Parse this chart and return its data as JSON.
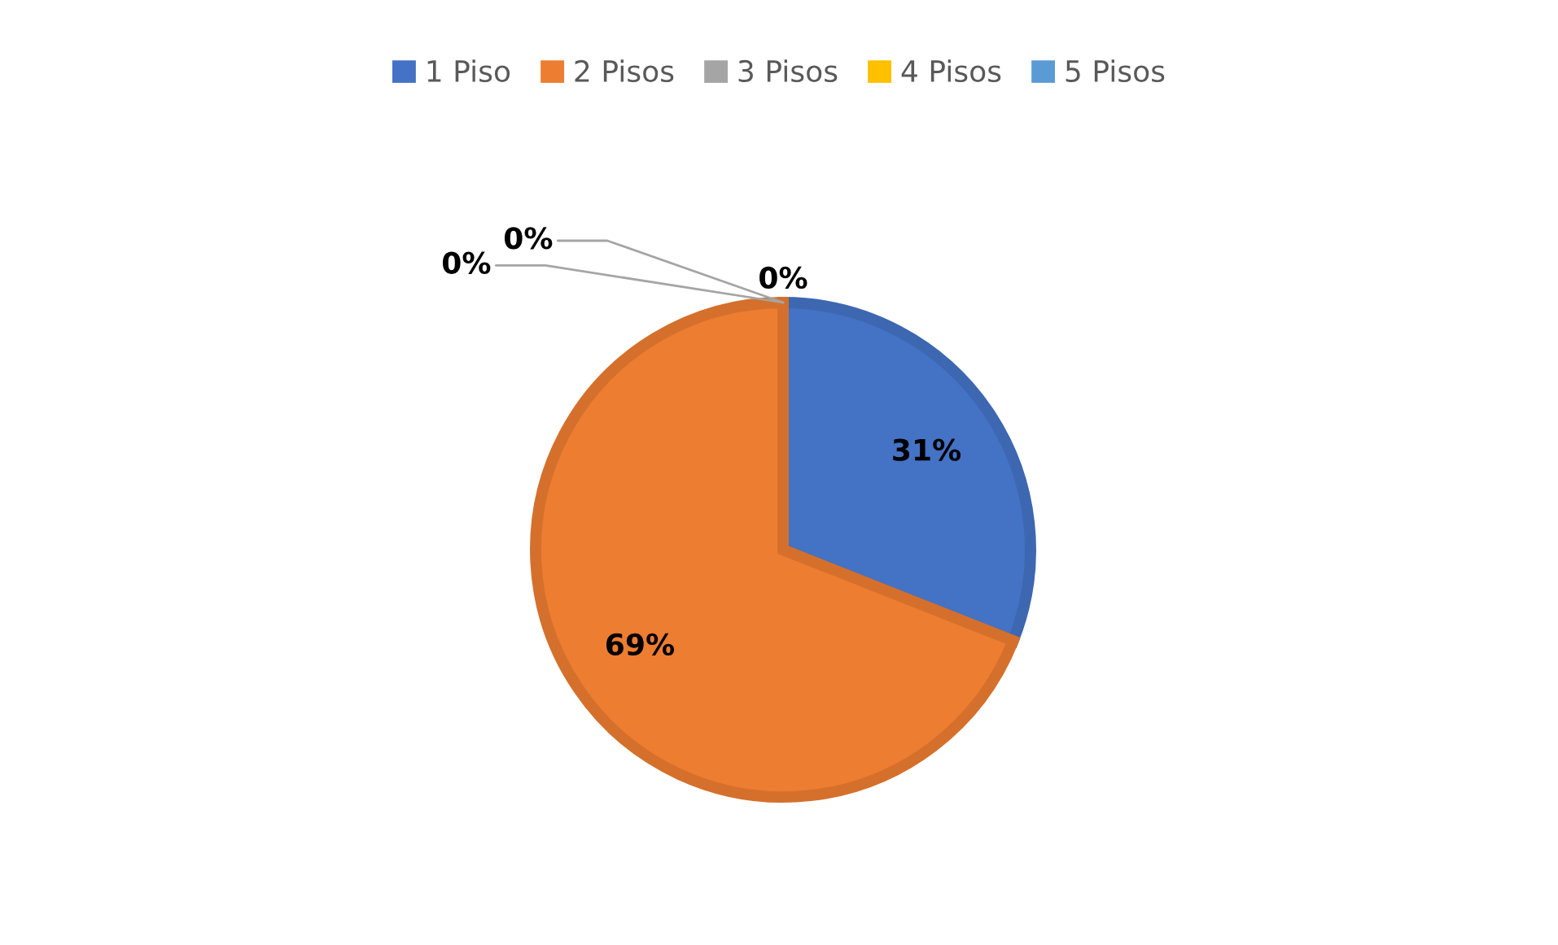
{
  "chart_data": {
    "type": "pie",
    "categories": [
      "1 Piso",
      "2 Pisos",
      "3 Pisos",
      "4 Pisos",
      "5 Pisos"
    ],
    "values": [
      31,
      69,
      0,
      0,
      0
    ],
    "colors": [
      "#4472c4",
      "#ed7d31",
      "#a5a5a5",
      "#ffc000",
      "#5b9bd5"
    ],
    "value_labels": [
      "31%",
      "69%",
      "0%",
      "0%",
      "0%"
    ],
    "legend": "top"
  }
}
